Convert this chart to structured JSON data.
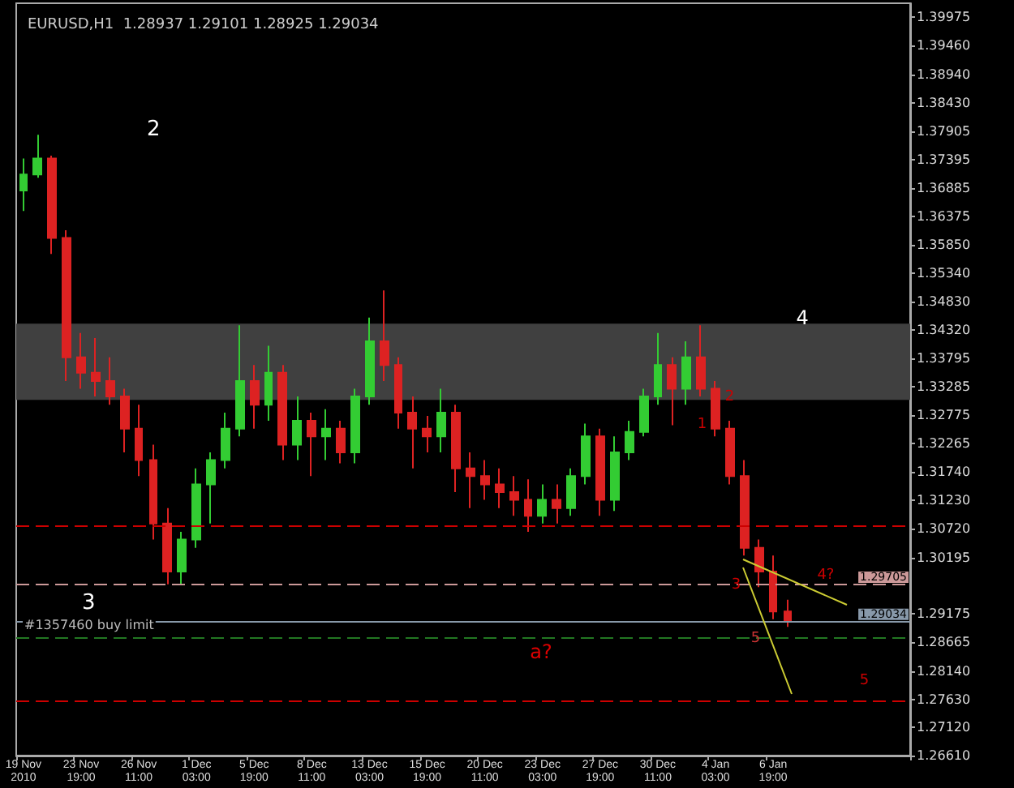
{
  "chart_data": {
    "type": "candlestick",
    "title": "EURUSD,H1  1.28937 1.29101 1.28925 1.29034",
    "categories": [
      "19 Nov 2010",
      null,
      null,
      null,
      "23 Nov 19:00",
      null,
      null,
      null,
      "26 Nov 11:00",
      null,
      null,
      null,
      "1 Dec 03:00",
      null,
      null,
      null,
      "5 Dec 19:00",
      null,
      null,
      null,
      "8 Dec 11:00",
      null,
      null,
      null,
      "13 Dec 03:00",
      null,
      null,
      null,
      "15 Dec 19:00",
      null,
      null,
      null,
      "20 Dec 11:00",
      null,
      null,
      null,
      "23 Dec 03:00",
      null,
      null,
      null,
      "27 Dec 19:00",
      null,
      null,
      null,
      "30 Dec 11:00",
      null,
      null,
      null,
      "4 Jan 03:00",
      null,
      null,
      null,
      "6 Jan 19:00",
      null,
      null,
      null,
      null,
      null,
      null,
      null,
      null,
      null
    ],
    "ohlc": [
      [
        1.3684,
        1.3742,
        1.3647,
        1.3713
      ],
      [
        1.3713,
        1.3785,
        1.3707,
        1.3742
      ],
      [
        1.3742,
        1.3747,
        1.3569,
        1.3598
      ],
      [
        1.3598,
        1.3612,
        1.3339,
        1.3382
      ],
      [
        1.3382,
        1.3426,
        1.3325,
        1.3354
      ],
      [
        1.3354,
        1.3417,
        1.3311,
        1.3339
      ],
      [
        1.3339,
        1.3382,
        1.3296,
        1.3311
      ],
      [
        1.3311,
        1.3325,
        1.321,
        1.3253
      ],
      [
        1.3253,
        1.3296,
        1.3167,
        1.3196
      ],
      [
        1.3196,
        1.3224,
        1.3052,
        1.3081
      ],
      [
        1.3081,
        1.3109,
        1.2971,
        1.2994
      ],
      [
        1.2994,
        1.3066,
        1.2971,
        1.3052
      ],
      [
        1.3052,
        1.3181,
        1.3037,
        1.3152
      ],
      [
        1.3152,
        1.321,
        1.3081,
        1.3196
      ],
      [
        1.3196,
        1.3282,
        1.3181,
        1.3253
      ],
      [
        1.3253,
        1.344,
        1.3239,
        1.3339
      ],
      [
        1.3339,
        1.3368,
        1.3253,
        1.3296
      ],
      [
        1.3296,
        1.3403,
        1.3267,
        1.3354
      ],
      [
        1.3354,
        1.3368,
        1.3196,
        1.3224
      ],
      [
        1.3224,
        1.3311,
        1.3196,
        1.3267
      ],
      [
        1.3267,
        1.3282,
        1.3167,
        1.3239
      ],
      [
        1.3239,
        1.3288,
        1.3196,
        1.3253
      ],
      [
        1.3253,
        1.3267,
        1.319,
        1.321
      ],
      [
        1.321,
        1.3325,
        1.319,
        1.3311
      ],
      [
        1.3311,
        1.3454,
        1.3296,
        1.3411
      ],
      [
        1.3411,
        1.3503,
        1.3339,
        1.3368
      ],
      [
        1.3368,
        1.3382,
        1.3253,
        1.3282
      ],
      [
        1.3282,
        1.3311,
        1.3181,
        1.3253
      ],
      [
        1.3253,
        1.3276,
        1.321,
        1.3239
      ],
      [
        1.3239,
        1.3325,
        1.321,
        1.3282
      ],
      [
        1.3282,
        1.3296,
        1.3138,
        1.3181
      ],
      [
        1.3181,
        1.321,
        1.3109,
        1.3167
      ],
      [
        1.3167,
        1.3196,
        1.3124,
        1.3152
      ],
      [
        1.3152,
        1.3181,
        1.3109,
        1.3138
      ],
      [
        1.3138,
        1.3167,
        1.3095,
        1.3124
      ],
      [
        1.3124,
        1.3161,
        1.3066,
        1.3095
      ],
      [
        1.3095,
        1.3152,
        1.3081,
        1.3124
      ],
      [
        1.3124,
        1.3152,
        1.3081,
        1.3109
      ],
      [
        1.3109,
        1.3181,
        1.3095,
        1.3167
      ],
      [
        1.3167,
        1.3262,
        1.3152,
        1.3239
      ],
      [
        1.3239,
        1.3253,
        1.3095,
        1.3124
      ],
      [
        1.3124,
        1.3239,
        1.3104,
        1.321
      ],
      [
        1.321,
        1.3267,
        1.3196,
        1.3247
      ],
      [
        1.3247,
        1.3325,
        1.3239,
        1.3311
      ],
      [
        1.3311,
        1.3426,
        1.3296,
        1.3368
      ],
      [
        1.3368,
        1.3382,
        1.3259,
        1.3325
      ],
      [
        1.3325,
        1.3411,
        1.3296,
        1.3382
      ],
      [
        1.3382,
        1.344,
        1.3311,
        1.3325
      ],
      [
        1.3325,
        1.3339,
        1.3239,
        1.3253
      ],
      [
        1.3253,
        1.3267,
        1.3152,
        1.3167
      ],
      [
        1.3167,
        1.3196,
        1.3023,
        1.3037
      ],
      [
        1.3037,
        1.3052,
        1.2966,
        1.2994
      ],
      [
        1.2994,
        1.3023,
        1.2908,
        1.2922
      ],
      [
        1.2922,
        1.2943,
        1.2894,
        1.29034
      ],
      null,
      null,
      null,
      null,
      null,
      null,
      null,
      null
    ],
    "colors": [
      "#33cc33",
      "#33cc33",
      "#dd2222",
      "#dd2222",
      "#dd2222",
      "#dd2222",
      "#dd2222",
      "#dd2222",
      "#dd2222",
      "#dd2222",
      "#dd2222",
      "#33cc33",
      "#33cc33",
      "#33cc33",
      "#33cc33",
      "#33cc33",
      "#dd2222",
      "#33cc33",
      "#dd2222",
      "#33cc33",
      "#dd2222",
      "#33cc33",
      "#dd2222",
      "#33cc33",
      "#33cc33",
      "#dd2222",
      "#dd2222",
      "#dd2222",
      "#dd2222",
      "#33cc33",
      "#dd2222",
      "#dd2222",
      "#dd2222",
      "#dd2222",
      "#dd2222",
      "#dd2222",
      "#33cc33",
      "#dd2222",
      "#33cc33",
      "#33cc33",
      "#dd2222",
      "#33cc33",
      "#33cc33",
      "#33cc33",
      "#33cc33",
      "#dd2222",
      "#33cc33",
      "#dd2222",
      "#dd2222",
      "#dd2222",
      "#dd2222",
      "#dd2222",
      "#dd2222",
      "#dd2222",
      null,
      null,
      null,
      null,
      null,
      null,
      null,
      null
    ],
    "ylim": [
      1.2661,
      1.4023
    ],
    "yticks": [
      1.39975,
      {
        "value": 1.3946,
        "label": "1.39460"
      },
      {
        "value": 1.3894,
        "label": "1.38940"
      },
      {
        "value": 1.3843,
        "label": "1.38430"
      },
      1.37905,
      1.37395,
      1.36885,
      1.36375,
      {
        "value": 1.3585,
        "label": "1.35850"
      },
      {
        "value": 1.3534,
        "label": "1.35340"
      },
      {
        "value": 1.3483,
        "label": "1.34830"
      },
      {
        "value": 1.3432,
        "label": "1.34320"
      },
      1.33795,
      1.33285,
      1.32775,
      1.32265,
      {
        "value": 1.3174,
        "label": "1.31740"
      },
      {
        "value": 1.3123,
        "label": "1.31230"
      },
      {
        "value": 1.3072,
        "label": "1.30720"
      },
      1.30195,
      1.29175,
      1.28665,
      {
        "value": 1.2814,
        "label": "1.28140"
      },
      {
        "value": 1.2763,
        "label": "1.27630"
      },
      {
        "value": 1.2712,
        "label": "1.27120"
      },
      {
        "value": 1.2661,
        "label": "1.26610"
      }
    ],
    "bands": [
      {
        "axis": "y",
        "from": 1.3305,
        "to": 1.3443,
        "color": "#404040"
      }
    ],
    "ref_lines": [
      {
        "axis": "y",
        "value": 1.3076,
        "color": "#cc0000",
        "line_style": "dashed"
      },
      {
        "axis": "y",
        "value": 1.29705,
        "label": "1.29705",
        "color": "#cc9999",
        "line_style": "dashed"
      },
      {
        "axis": "y",
        "value": 1.29034,
        "label": "1.29034",
        "color": "#8899aa",
        "line_style": "solid"
      },
      {
        "axis": "y",
        "value": 1.2874,
        "label": "#1357460 buy limit",
        "color": "#227722",
        "line_style": "dashed"
      },
      {
        "axis": "y",
        "value": 1.2759,
        "color": "#cc0000",
        "line_style": "dashed"
      }
    ],
    "annotations": [
      "2",
      "4",
      "3",
      "1",
      "2",
      "3",
      {
        "text": "4?",
        "y": 1.29705
      },
      "5",
      "a?",
      "5"
    ]
  }
}
